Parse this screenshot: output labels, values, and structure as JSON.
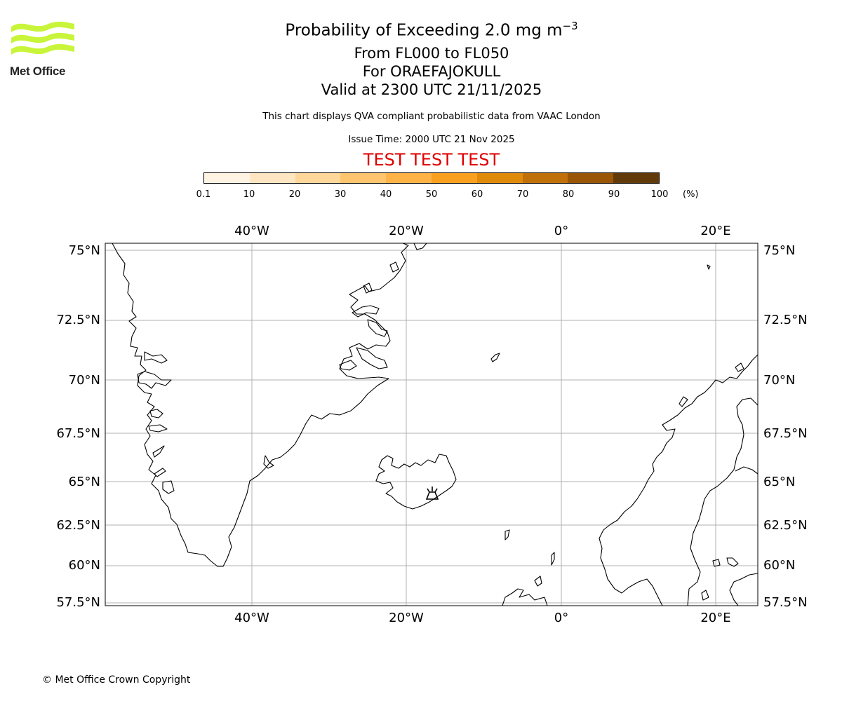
{
  "logo": {
    "text": "Met Office",
    "color": "#c8f53a"
  },
  "header": {
    "title_main": "Probability of Exceeding 2.0 mg m",
    "title_exponent": "−3",
    "level_range": "From FL000 to FL050",
    "volcano": "For ORAEFAJOKULL",
    "valid_time": "Valid at 2300 UTC 21/11/2025",
    "note": "This chart displays QVA compliant probabilistic data from VAAC London",
    "issue_time": "Issue Time: 2000 UTC 21 Nov 2025",
    "test_banner": "TEST TEST TEST",
    "test_color": "#e00000"
  },
  "colorbar": {
    "ticks": [
      "0.1",
      "10",
      "20",
      "30",
      "40",
      "50",
      "60",
      "70",
      "80",
      "90",
      "100"
    ],
    "unit": "(%)",
    "colors": [
      "#fff4e3",
      "#ffe6c2",
      "#ffd79a",
      "#ffc46e",
      "#ffb347",
      "#f9a020",
      "#e08a0c",
      "#c07008",
      "#9a5506",
      "#623a0a"
    ]
  },
  "map": {
    "lon_labels": [
      "40°W",
      "20°W",
      "0°",
      "20°E"
    ],
    "lat_labels": [
      "75°N",
      "72.5°N",
      "70°N",
      "67.5°N",
      "65°N",
      "62.5°N",
      "60°N",
      "57.5°N"
    ],
    "volcano_symbol": "volcano",
    "volcano_lat": 64.0,
    "volcano_lon": -16.65
  },
  "footer": {
    "copyright": "© Met Office Crown Copyright"
  }
}
